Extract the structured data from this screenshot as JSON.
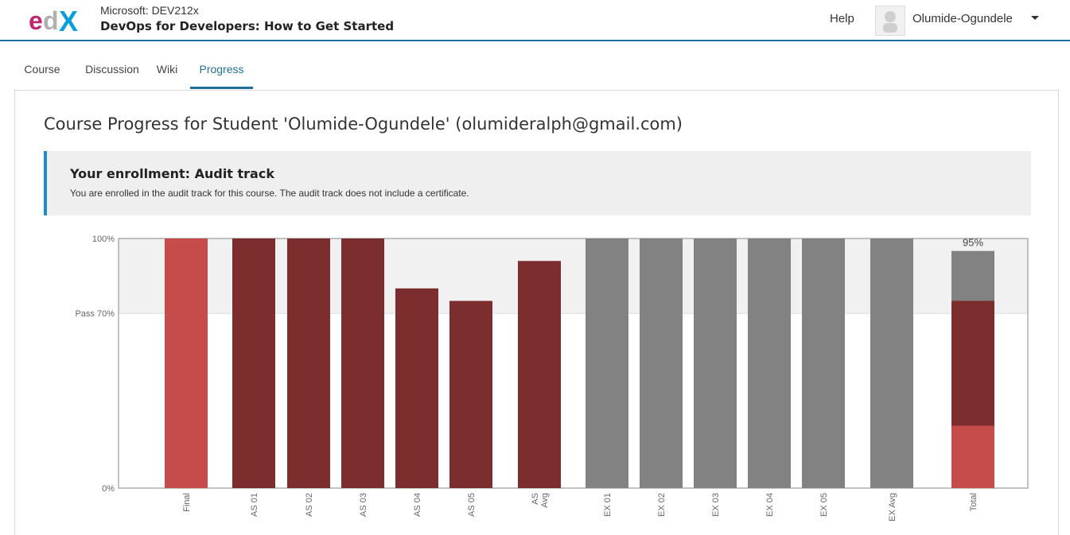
{
  "header": {
    "logo_text": "edX",
    "course_org": "Microsoft: DEV212x",
    "course_name": "DevOps for Developers: How to Get Started",
    "help_label": "Help",
    "username": "Olumide-Ogundele",
    "avatar_icon": "user-avatar-icon",
    "menu_icon": "chevron-down-icon"
  },
  "tabs": [
    {
      "label": "Course",
      "active": false
    },
    {
      "label": "Discussion",
      "active": false
    },
    {
      "label": "Wiki",
      "active": false
    },
    {
      "label": "Progress",
      "active": true
    }
  ],
  "page": {
    "title": "Course Progress for Student 'Olumide-Ogundele' (olumideralph@gmail.com)"
  },
  "enrollment": {
    "title": "Your enrollment: Audit track",
    "message": "You are enrolled in the audit track for this course. The audit track does not include a certificate."
  },
  "colors": {
    "accent": "#1f6f9c",
    "final_bar": "#c64b4b",
    "assignment_bar": "#7c2e2e",
    "exam_bar": "#828282",
    "pass_band": "#f1f1f1"
  },
  "chart_data": {
    "type": "bar",
    "ylim": [
      0,
      100
    ],
    "y_ticks": [
      {
        "value": 100,
        "label": "100%"
      },
      {
        "value": 70,
        "label": "Pass 70%"
      },
      {
        "value": 0,
        "label": "0%"
      }
    ],
    "categories": [
      "Final",
      "AS 01",
      "AS 02",
      "AS 03",
      "AS 04",
      "AS 05",
      "AS Avg",
      "EX 01",
      "EX 02",
      "EX 03",
      "EX 04",
      "EX 05",
      "EX Avg",
      "Total"
    ],
    "series": [
      {
        "group": "final",
        "values": [
          100,
          null,
          null,
          null,
          null,
          null,
          null,
          null,
          null,
          null,
          null,
          null,
          null,
          null
        ]
      },
      {
        "group": "assignments",
        "values": [
          null,
          100,
          100,
          100,
          80,
          75,
          91,
          null,
          null,
          null,
          null,
          null,
          null,
          null
        ]
      },
      {
        "group": "exams",
        "values": [
          null,
          null,
          null,
          null,
          null,
          null,
          null,
          100,
          100,
          100,
          100,
          100,
          100,
          null
        ]
      }
    ],
    "total": {
      "label": "95%",
      "stack": [
        {
          "group": "final",
          "value": 25
        },
        {
          "group": "assignments",
          "value": 50
        },
        {
          "group": "exams",
          "value": 20
        }
      ]
    }
  }
}
